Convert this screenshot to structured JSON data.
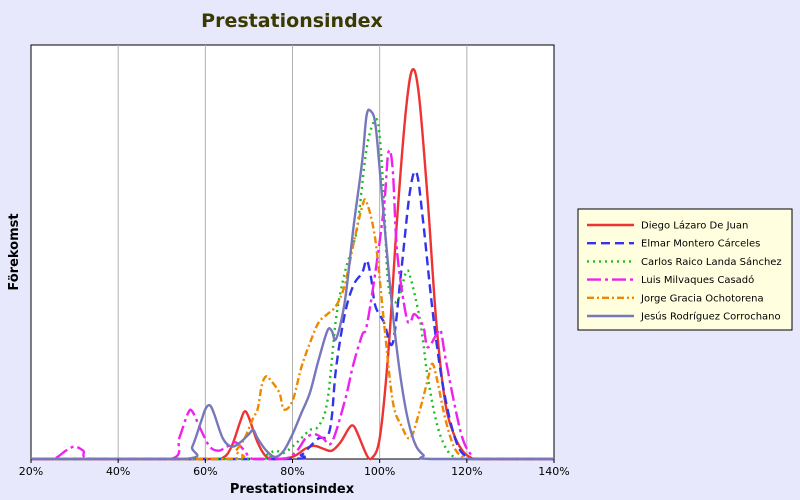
{
  "chart_data": {
    "type": "line",
    "title": "Prestationsindex",
    "xlabel": "Prestationsindex",
    "ylabel": "Förekomst",
    "xlim": [
      20,
      140
    ],
    "ylim": [
      0,
      100
    ],
    "x_tick_labels": [
      "20%",
      "40%",
      "60%",
      "80%",
      "100%",
      "120%",
      "140%"
    ],
    "x_ticks": [
      20,
      40,
      60,
      80,
      100,
      120,
      140
    ],
    "grid": "vertical",
    "legend_position": "right",
    "plot_background": "#ffffff",
    "page_background": "#e8e8fc",
    "legend_background": "#ffffe0",
    "series": [
      {
        "name": "Diego Lázaro De Juan",
        "color": "#ee3333",
        "dash": "solid",
        "points": [
          [
            60,
            0
          ],
          [
            64,
            0.3
          ],
          [
            66,
            3
          ],
          [
            68,
            9
          ],
          [
            69,
            11.5
          ],
          [
            70,
            10
          ],
          [
            72,
            4
          ],
          [
            74,
            0.5
          ],
          [
            76,
            0
          ],
          [
            80,
            0.5
          ],
          [
            83,
            2.5
          ],
          [
            85,
            3.2
          ],
          [
            87,
            2.5
          ],
          [
            89,
            2
          ],
          [
            91,
            4
          ],
          [
            93,
            7.5
          ],
          [
            94,
            8
          ],
          [
            95,
            6
          ],
          [
            97,
            1
          ],
          [
            98,
            0
          ],
          [
            100,
            5
          ],
          [
            102,
            26
          ],
          [
            104,
            58
          ],
          [
            106,
            84
          ],
          [
            107.5,
            94
          ],
          [
            109,
            88
          ],
          [
            111,
            63
          ],
          [
            113,
            33
          ],
          [
            115,
            14
          ],
          [
            117,
            6
          ],
          [
            119,
            2
          ],
          [
            121,
            0.3
          ],
          [
            123,
            0
          ]
        ]
      },
      {
        "name": "Elmar Montero Cárceles",
        "color": "#3333ee",
        "dash": "long",
        "points": [
          [
            78,
            0
          ],
          [
            82,
            1
          ],
          [
            84,
            3
          ],
          [
            86,
            5
          ],
          [
            88,
            5.5
          ],
          [
            89,
            10
          ],
          [
            90,
            22
          ],
          [
            92,
            35
          ],
          [
            94,
            42
          ],
          [
            96,
            45
          ],
          [
            97,
            48
          ],
          [
            98,
            44
          ],
          [
            99,
            37
          ],
          [
            101,
            33
          ],
          [
            103,
            28
          ],
          [
            105,
            46
          ],
          [
            107,
            65
          ],
          [
            108.5,
            69
          ],
          [
            110,
            57
          ],
          [
            112,
            37
          ],
          [
            114,
            21
          ],
          [
            116,
            10
          ],
          [
            118,
            3
          ],
          [
            120,
            0.5
          ],
          [
            122,
            0
          ]
        ]
      },
      {
        "name": "Carlos Raico Landa Sánchez",
        "color": "#22bb22",
        "dash": "dotted",
        "points": [
          [
            70,
            0
          ],
          [
            74,
            1
          ],
          [
            76,
            2
          ],
          [
            78,
            1.5
          ],
          [
            80,
            3
          ],
          [
            82,
            5
          ],
          [
            84,
            7
          ],
          [
            86,
            8
          ],
          [
            88,
            14
          ],
          [
            90,
            34
          ],
          [
            92,
            45
          ],
          [
            94,
            52
          ],
          [
            95,
            57
          ],
          [
            97,
            75
          ],
          [
            99,
            82
          ],
          [
            100,
            78
          ],
          [
            101,
            62
          ],
          [
            102,
            42
          ],
          [
            104,
            38
          ],
          [
            106,
            45
          ],
          [
            107,
            44
          ],
          [
            109,
            35
          ],
          [
            110,
            28
          ],
          [
            111,
            20
          ],
          [
            113,
            9
          ],
          [
            115,
            3
          ],
          [
            117,
            0.5
          ],
          [
            119,
            0
          ]
        ]
      },
      {
        "name": "Luis Milvaques Casadó",
        "color": "#ee22ee",
        "dash": "longdot",
        "points": [
          [
            25,
            0
          ],
          [
            28,
            2
          ],
          [
            30,
            3
          ],
          [
            32,
            2
          ],
          [
            34,
            0
          ],
          [
            52,
            0
          ],
          [
            54,
            5
          ],
          [
            56,
            11
          ],
          [
            57,
            11.5
          ],
          [
            59,
            7
          ],
          [
            61,
            3
          ],
          [
            63,
            2
          ],
          [
            65,
            3
          ],
          [
            67,
            4
          ],
          [
            69,
            2
          ],
          [
            71,
            0
          ],
          [
            78,
            0
          ],
          [
            81,
            2
          ],
          [
            83,
            5
          ],
          [
            85,
            6
          ],
          [
            87,
            5
          ],
          [
            89,
            4
          ],
          [
            92,
            14
          ],
          [
            94,
            23
          ],
          [
            96,
            30
          ],
          [
            97,
            32
          ],
          [
            99,
            45
          ],
          [
            101,
            61
          ],
          [
            102,
            74
          ],
          [
            103,
            70
          ],
          [
            104,
            50
          ],
          [
            106,
            35
          ],
          [
            107,
            33
          ],
          [
            108,
            35
          ],
          [
            110,
            32
          ],
          [
            111,
            27
          ],
          [
            113,
            30
          ],
          [
            114,
            31
          ],
          [
            115,
            25
          ],
          [
            117,
            14
          ],
          [
            119,
            5
          ],
          [
            121,
            1
          ],
          [
            123,
            0
          ]
        ]
      },
      {
        "name": "Jorge Gracia Ochotorena",
        "color": "#ee8800",
        "dash": "dashdot",
        "points": [
          [
            65,
            0
          ],
          [
            67,
            2
          ],
          [
            69,
            5
          ],
          [
            71,
            10
          ],
          [
            72,
            12
          ],
          [
            73,
            18
          ],
          [
            74,
            20
          ],
          [
            75,
            19
          ],
          [
            77,
            16
          ],
          [
            78,
            12
          ],
          [
            80,
            14
          ],
          [
            82,
            22
          ],
          [
            84,
            28
          ],
          [
            86,
            33
          ],
          [
            88,
            35
          ],
          [
            90,
            37
          ],
          [
            92,
            42
          ],
          [
            94,
            52
          ],
          [
            96,
            61
          ],
          [
            97,
            62
          ],
          [
            99,
            53
          ],
          [
            101,
            33
          ],
          [
            103,
            14
          ],
          [
            105,
            8
          ],
          [
            107,
            5
          ],
          [
            109,
            11
          ],
          [
            111,
            19
          ],
          [
            112,
            23
          ],
          [
            113,
            20
          ],
          [
            115,
            10
          ],
          [
            117,
            3
          ],
          [
            119,
            0.5
          ],
          [
            121,
            0
          ]
        ]
      },
      {
        "name": "Jesús Rodríguez Corrochano",
        "color": "#7777bb",
        "dash": "solid",
        "points": [
          [
            55,
            0
          ],
          [
            57,
            3
          ],
          [
            59,
            9
          ],
          [
            60,
            12
          ],
          [
            61,
            13
          ],
          [
            62,
            11
          ],
          [
            64,
            5
          ],
          [
            66,
            3
          ],
          [
            68,
            4
          ],
          [
            70,
            6
          ],
          [
            71,
            7
          ],
          [
            72,
            5
          ],
          [
            74,
            2
          ],
          [
            76,
            0.5
          ],
          [
            78,
            2
          ],
          [
            80,
            6
          ],
          [
            82,
            11
          ],
          [
            84,
            16
          ],
          [
            86,
            24
          ],
          [
            88,
            31
          ],
          [
            89,
            31
          ],
          [
            90,
            29
          ],
          [
            92,
            38
          ],
          [
            94,
            56
          ],
          [
            96,
            72
          ],
          [
            97,
            83
          ],
          [
            98,
            84
          ],
          [
            99,
            81
          ],
          [
            100,
            70
          ],
          [
            102,
            46
          ],
          [
            104,
            26
          ],
          [
            106,
            12
          ],
          [
            108,
            4
          ],
          [
            110,
            1
          ],
          [
            112,
            0
          ]
        ]
      }
    ]
  }
}
